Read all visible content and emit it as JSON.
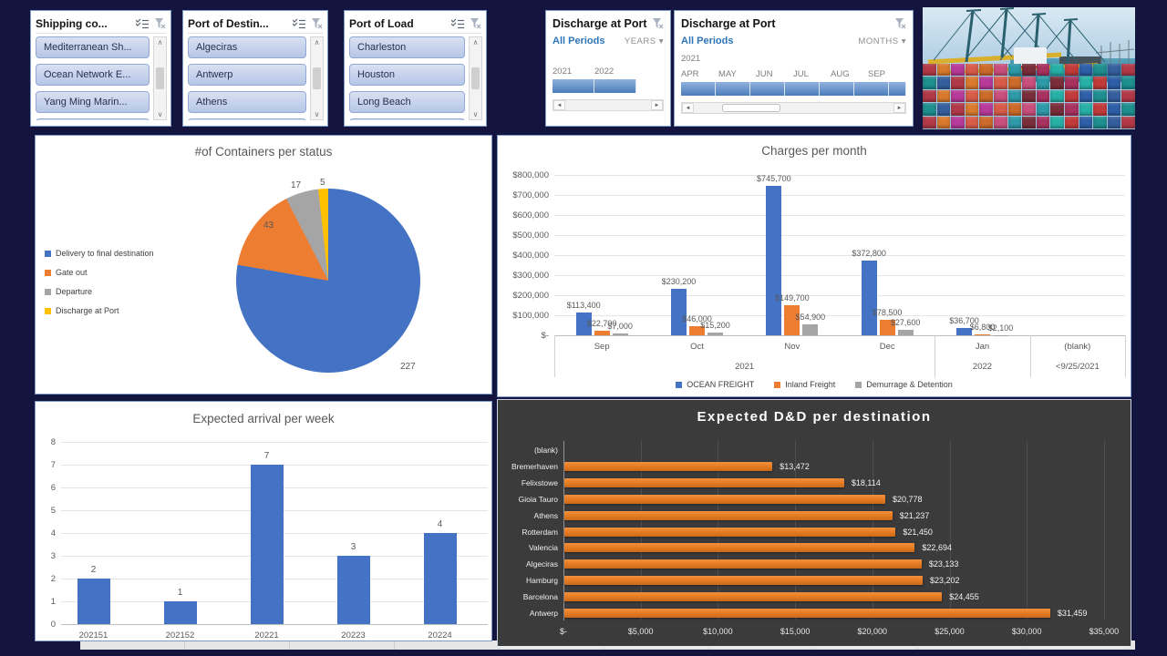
{
  "colors": {
    "blue": "#4472C4",
    "orange": "#ED7D31",
    "gray": "#A5A5A5",
    "yellow": "#FFC000",
    "dd_bg": "#3B3B3B",
    "timeline_blue": "#4C7CBA"
  },
  "icons": {
    "dropdown_glyph": "▾",
    "scroll_up_glyph": "∧",
    "scroll_down_glyph": "∨",
    "scroll_left_glyph": "◄",
    "scroll_right_glyph": "►"
  },
  "slicers": [
    {
      "title": "Shipping co...",
      "items": [
        "Mediterranean Sh...",
        "Ocean Network E...",
        "Yang Ming Marin..."
      ],
      "partial_item": ""
    },
    {
      "title": "Port of Destin...",
      "items": [
        "Algeciras",
        "Antwerp",
        "Athens"
      ],
      "partial_item": ""
    },
    {
      "title": "Port of Load",
      "items": [
        "Charleston",
        "Houston",
        "Long Beach"
      ],
      "partial_item": ""
    }
  ],
  "timelines": [
    {
      "title": "Discharge at Port",
      "period_label": "All Periods",
      "level": "YEARS",
      "cells": [
        "2021",
        "2022"
      ]
    },
    {
      "title": "Discharge at Port",
      "period_label": "All Periods",
      "level": "MONTHS",
      "year_label": "2021",
      "cells": [
        "APR",
        "MAY",
        "JUN",
        "JUL",
        "AUG",
        "SEP"
      ]
    }
  ],
  "chart_data": [
    {
      "id": "containers_pie",
      "type": "pie",
      "title": "#of Containers per status",
      "labels": [
        "Delivery to final destination",
        "Gate out",
        "Departure",
        "Discharge at Port"
      ],
      "values": [
        227,
        43,
        17,
        5
      ],
      "data_labels": [
        "227",
        "43",
        "17",
        "5"
      ],
      "colors": [
        "#4472C4",
        "#ED7D31",
        "#A5A5A5",
        "#FFC000"
      ],
      "legend_position": "left"
    },
    {
      "id": "charges",
      "type": "bar",
      "title": "Charges per month",
      "categories": [
        "Sep",
        "Oct",
        "Nov",
        "Dec",
        "Jan",
        "(blank)"
      ],
      "group_labels": [
        {
          "label": "2021",
          "span": 4
        },
        {
          "label": "2022",
          "span": 1
        },
        {
          "label": "<9/25/2021",
          "span": 1
        }
      ],
      "series": [
        {
          "name": "OCEAN FREIGHT",
          "color": "#4472C4",
          "values": [
            113400,
            230200,
            745700,
            372800,
            36700,
            0
          ],
          "labels": [
            "$113,400",
            "$230,200",
            "$745,700",
            "$372,800",
            "$36,700",
            ""
          ]
        },
        {
          "name": "Inland Freight",
          "color": "#ED7D31",
          "values": [
            22700,
            46000,
            149700,
            78500,
            6800,
            0
          ],
          "labels": [
            "$22,700",
            "$46,000",
            "$149,700",
            "$78,500",
            "$6,800",
            ""
          ]
        },
        {
          "name": "Demurrage & Detention",
          "color": "#A5A5A5",
          "values": [
            7000,
            15200,
            54900,
            27600,
            2100,
            0
          ],
          "labels": [
            "$7,000",
            "$15,200",
            "$54,900",
            "$27,600",
            "$2,100",
            ""
          ]
        }
      ],
      "yticks": [
        "$800,000",
        "$700,000",
        "$600,000",
        "$500,000",
        "$400,000",
        "$300,000",
        "$200,000",
        "$100,000",
        "$-"
      ],
      "ylim": [
        0,
        800000
      ],
      "grid": true,
      "legend_position": "bottom"
    },
    {
      "id": "arrival",
      "type": "bar",
      "title": "Expected arrival per week",
      "categories": [
        "202151",
        "202152",
        "20221",
        "20223",
        "20224"
      ],
      "values": [
        2,
        1,
        7,
        3,
        4
      ],
      "data_labels": [
        "2",
        "1",
        "7",
        "3",
        "4"
      ],
      "yticks": [
        "8",
        "7",
        "6",
        "5",
        "4",
        "3",
        "2",
        "1",
        "0"
      ],
      "ylim": [
        0,
        8
      ],
      "grid": true,
      "color": "#4472C4"
    },
    {
      "id": "dd",
      "type": "bar-horizontal",
      "title": "Expected D&D per destination",
      "categories": [
        "(blank)",
        "Bremerhaven",
        "Felixstowe",
        "Gioia Tauro",
        "Athens",
        "Rotterdam",
        "Valencia",
        "Algeciras",
        "Hamburg",
        "Barcelona",
        "Antwerp"
      ],
      "values": [
        0,
        13472,
        18114,
        20778,
        21237,
        21450,
        22694,
        23133,
        23202,
        24455,
        31459
      ],
      "data_labels": [
        "",
        "$13,472",
        "$18,114",
        "$20,778",
        "$21,237",
        "$21,450",
        "$22,694",
        "$23,133",
        "$23,202",
        "$24,455",
        "$31,459"
      ],
      "xticks": [
        "$-",
        "$5,000",
        "$10,000",
        "$15,000",
        "$20,000",
        "$25,000",
        "$30,000",
        "$35,000"
      ],
      "xlim": [
        0,
        35000
      ],
      "grid": true,
      "color": "#ED7D31",
      "bg": "#3B3B3B",
      "title_color": "#FFFFFF"
    }
  ],
  "photo": {
    "name": "container-port-photo"
  }
}
